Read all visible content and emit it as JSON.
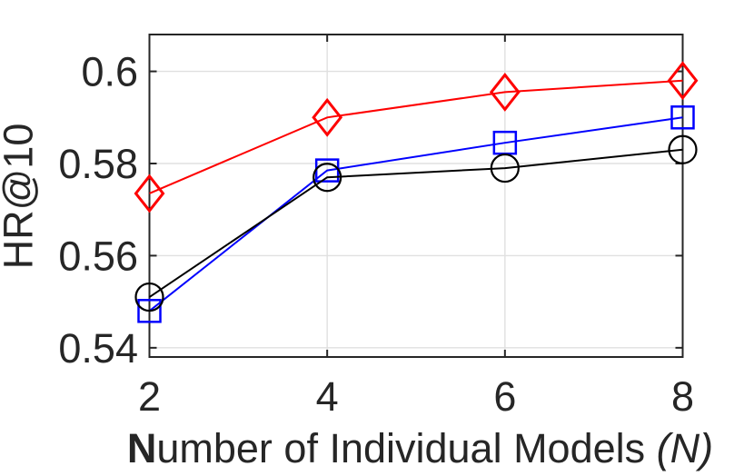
{
  "chart_data": {
    "type": "line",
    "x": [
      2,
      4,
      6,
      8
    ],
    "series": [
      {
        "name": "red-diamond-series",
        "color": "#fe0000",
        "marker": "diamond",
        "values": [
          0.5735,
          0.59,
          0.5955,
          0.598
        ]
      },
      {
        "name": "blue-square-series",
        "color": "#0000fe",
        "marker": "square",
        "values": [
          0.548,
          0.5785,
          0.5845,
          0.59
        ]
      },
      {
        "name": "black-circle-series",
        "color": "#000000",
        "marker": "circle",
        "values": [
          0.551,
          0.577,
          0.579,
          0.583
        ]
      }
    ],
    "title": "",
    "ylabel": "HR@10",
    "xlabel_bold_prefix": "N",
    "xlabel_main": "umber of Individual Models ",
    "xlabel_italic_suffix": "(N)",
    "xlim": [
      2,
      8
    ],
    "ylim": [
      0.538,
      0.608
    ],
    "xticks": [
      2,
      4,
      6,
      8
    ],
    "yticks": [
      0.54,
      0.56,
      0.58,
      0.6
    ],
    "xtick_labels": [
      "2",
      "4",
      "6",
      "8"
    ],
    "ytick_labels": [
      "0.54",
      "0.56",
      "0.58",
      "0.6"
    ],
    "grid": true,
    "legend": "none",
    "colors": {
      "axis": "#262626",
      "grid": "#e0e0e0",
      "text": "#262626",
      "background": "#ffffff"
    }
  }
}
